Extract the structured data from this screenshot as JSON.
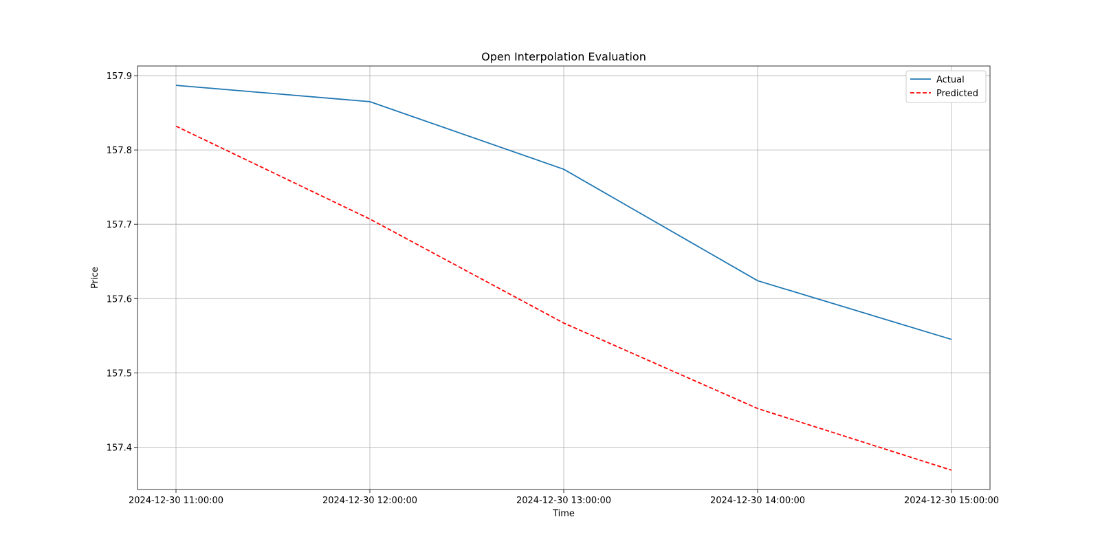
{
  "chart_data": {
    "type": "line",
    "title": "Open Interpolation Evaluation",
    "xlabel": "Time",
    "ylabel": "Price",
    "x": [
      "2024-12-30 11:00:00",
      "2024-12-30 12:00:00",
      "2024-12-30 13:00:00",
      "2024-12-30 14:00:00",
      "2024-12-30 15:00:00"
    ],
    "yticks": [
      "157.4",
      "157.5",
      "157.6",
      "157.7",
      "157.8",
      "157.9"
    ],
    "ylim": [
      157.343,
      157.913
    ],
    "grid": true,
    "legend_position": "top-right",
    "series": [
      {
        "name": "Actual",
        "values": [
          157.887,
          157.865,
          157.774,
          157.624,
          157.545
        ],
        "color": "#1f77b4",
        "style": "solid"
      },
      {
        "name": "Predicted",
        "values": [
          157.832,
          157.707,
          157.567,
          157.452,
          157.369
        ],
        "color": "#ff0000",
        "style": "dashed"
      }
    ]
  }
}
